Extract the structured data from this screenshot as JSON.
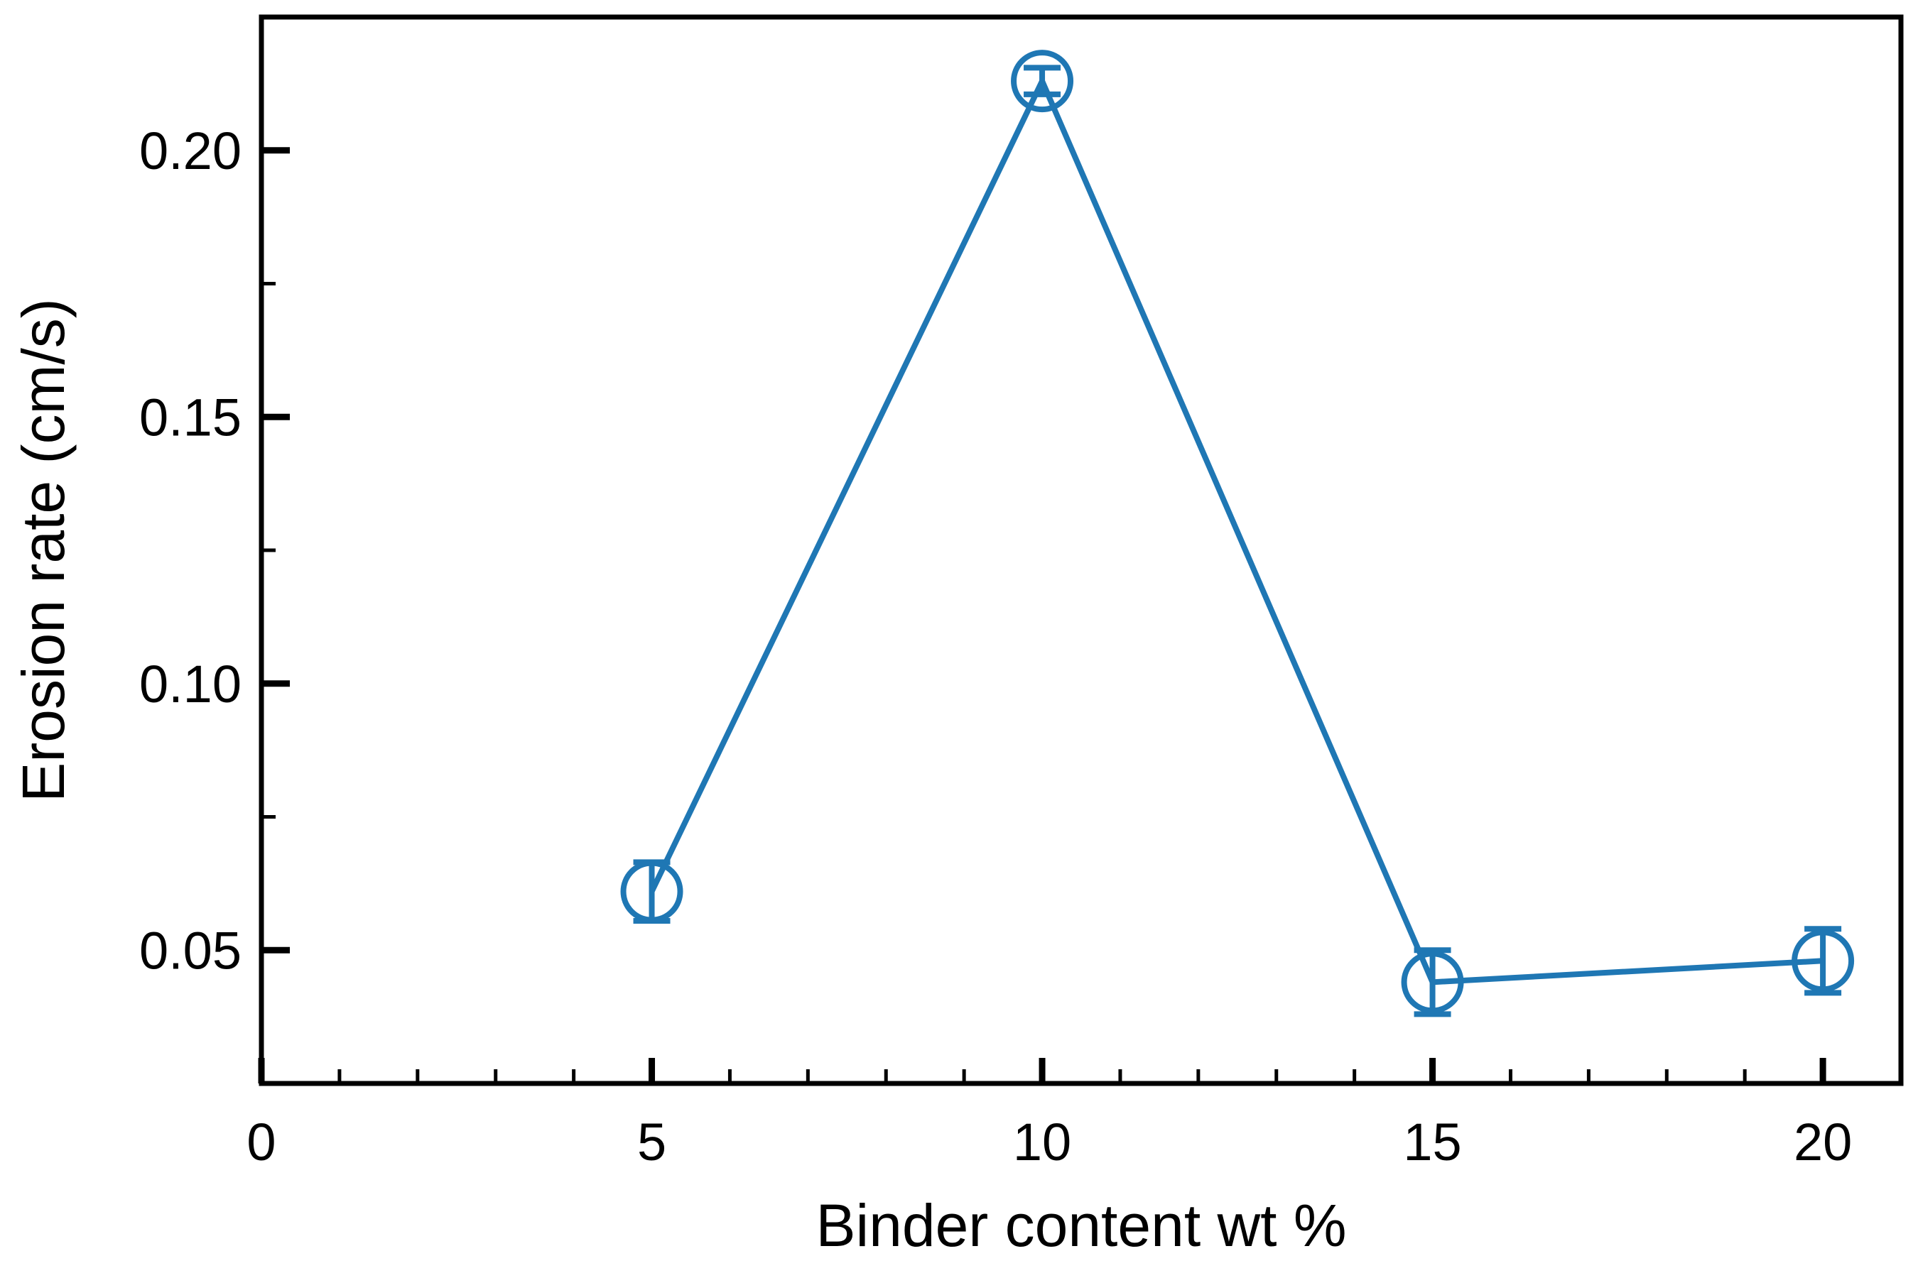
{
  "chart_data": {
    "type": "scatter",
    "title": "",
    "xlabel": "Binder content wt %",
    "ylabel": "Erosion rate (cm/s)",
    "xlim": [
      0,
      21
    ],
    "ylim": [
      0.025,
      0.225
    ],
    "x_ticks": [
      0,
      5,
      10,
      15,
      20
    ],
    "x_tick_labels": [
      "0",
      "5",
      "10",
      "15",
      "20"
    ],
    "x_minor_step": 1,
    "y_ticks": [
      0.05,
      0.1,
      0.15,
      0.2
    ],
    "y_tick_labels": [
      "0.05",
      "0.10",
      "0.15",
      "0.20"
    ],
    "y_minor_step": 0.025,
    "grid": false,
    "legend": "none",
    "marker": "open-circle",
    "connected": true,
    "color": "#1f77b4",
    "series": [
      {
        "x": [
          5,
          10,
          15,
          20
        ],
        "y": [
          0.061,
          0.213,
          0.044,
          0.048
        ],
        "y_error": [
          0.0055,
          0.0025,
          0.006,
          0.006
        ]
      }
    ]
  }
}
